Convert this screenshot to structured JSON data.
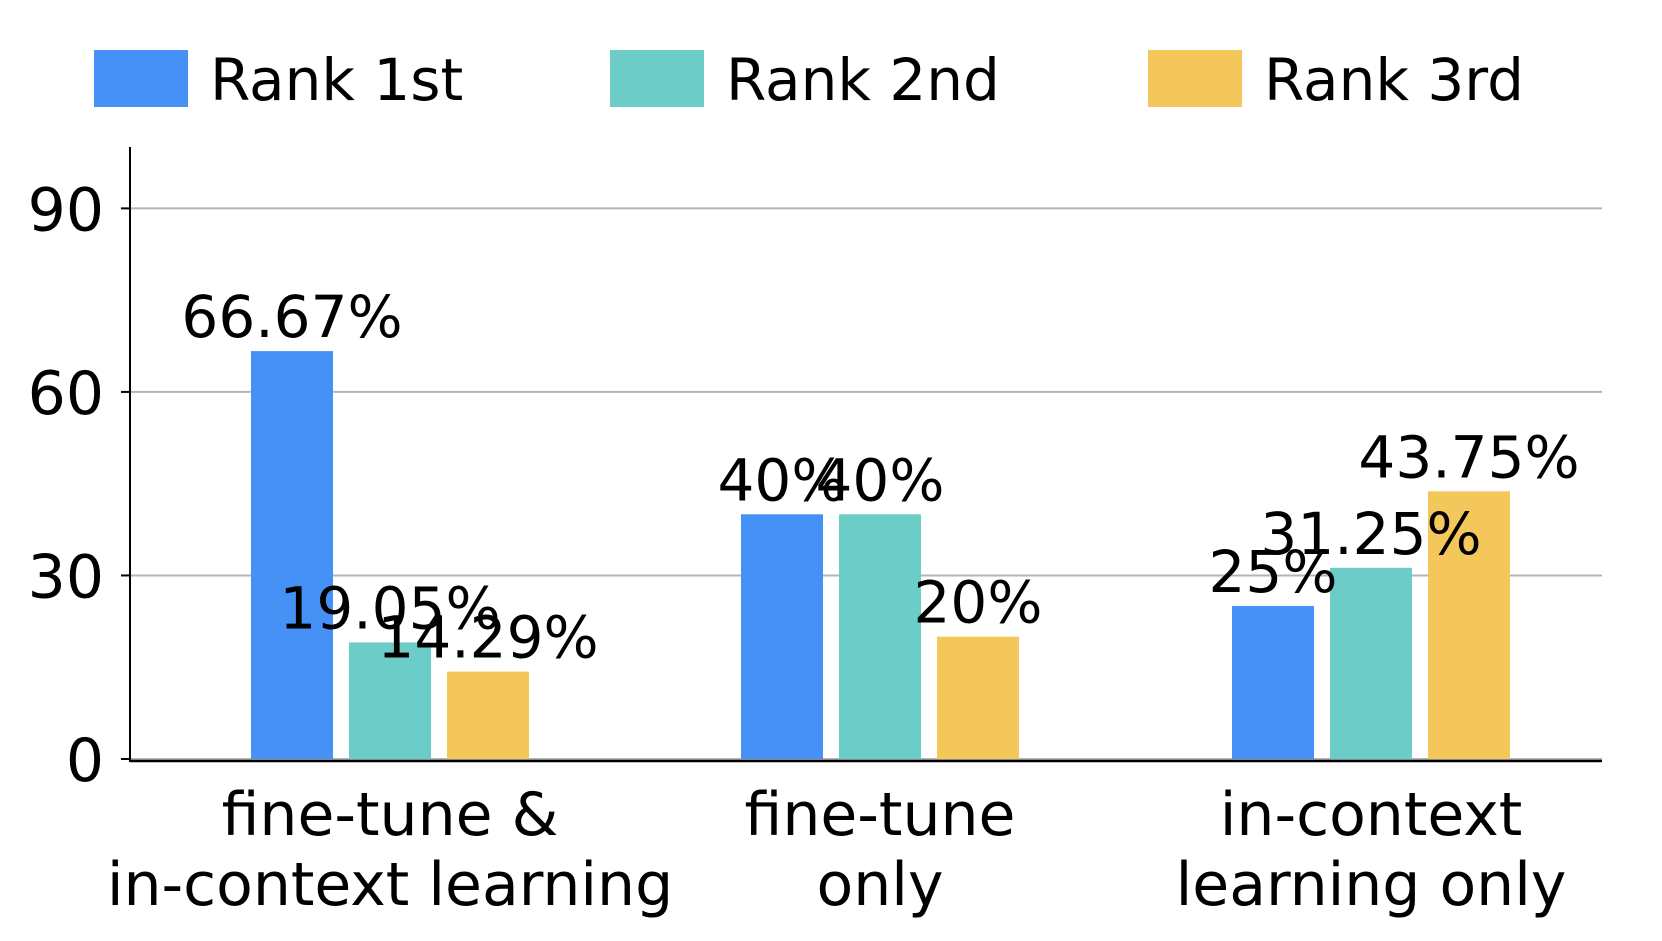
{
  "chart_data": {
    "type": "bar",
    "categories": [
      [
        "fine-tune &",
        "in-context learning"
      ],
      [
        "fine-tune",
        "only"
      ],
      [
        "in-context",
        "learning only"
      ]
    ],
    "series": [
      {
        "name": "Rank 1st",
        "color": "#4591F5",
        "values": [
          66.67,
          40,
          25
        ],
        "labels": [
          "66.67%",
          "40%",
          "25%"
        ]
      },
      {
        "name": "Rank 2nd",
        "color": "#6CCCC8",
        "values": [
          19.05,
          40,
          31.25
        ],
        "labels": [
          "19.05%",
          "40%",
          "31.25%"
        ]
      },
      {
        "name": "Rank 3rd",
        "color": "#F4C75B",
        "values": [
          14.29,
          20,
          43.75
        ],
        "labels": [
          "14.29%",
          "20%",
          "43.75%"
        ]
      }
    ],
    "yticks": [
      0,
      30,
      60,
      90
    ],
    "ylim": [
      0,
      100
    ],
    "grid": true,
    "legend_position": "top"
  }
}
